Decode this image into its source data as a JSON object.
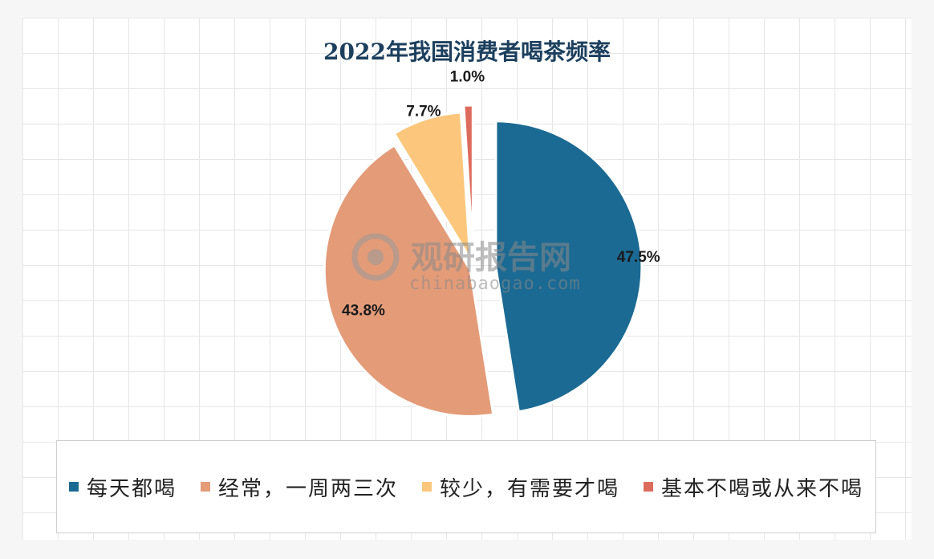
{
  "chart_data": {
    "type": "pie",
    "title": "2022年我国消费者喝茶频率",
    "slices": [
      {
        "label": "每天都喝",
        "value": 47.5,
        "value_label": "47.5%",
        "color": "#1b6a93"
      },
      {
        "label": "经常，一周两三次",
        "value": 43.8,
        "value_label": "43.8%",
        "color": "#e39b78"
      },
      {
        "label": "较少，有需要才喝",
        "value": 7.7,
        "value_label": "7.7%",
        "color": "#fcc77c"
      },
      {
        "label": "基本不喝或从来不喝",
        "value": 1.0,
        "value_label": "1.0%",
        "color": "#dd6b5c"
      }
    ],
    "legend_position": "bottom"
  },
  "watermark": {
    "brand": "观研报告网",
    "url": "chinabaogao.com"
  },
  "colors": {
    "title": "#1c3f5e",
    "label_text": "#1a1a1a"
  }
}
